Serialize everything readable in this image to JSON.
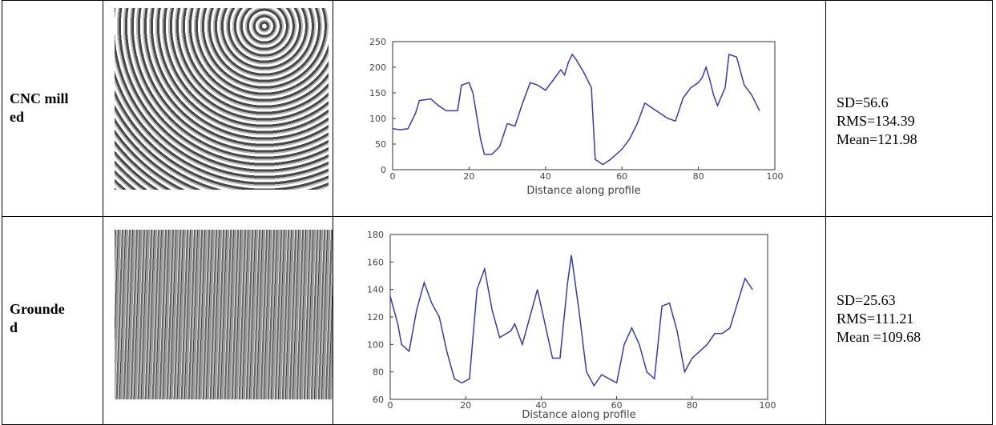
{
  "table": {
    "rows": [
      {
        "label": "CNC milled",
        "stats": [
          "SD=56.6",
          "RMS=134.39",
          "Mean=121.98"
        ]
      },
      {
        "label": "Grounded",
        "stats": [
          "SD=25.63",
          "RMS=111.21",
          "Mean =109.68"
        ]
      }
    ]
  },
  "chart_data": [
    {
      "type": "line",
      "xlabel": "Distance along profile",
      "color": "#3a3aa8",
      "x": [
        0,
        2,
        4,
        6,
        7,
        10,
        12,
        14,
        17,
        18,
        20,
        21,
        23,
        24,
        26,
        28,
        30,
        32,
        34,
        36,
        38,
        40,
        42,
        44,
        45,
        46,
        47,
        48,
        50,
        52,
        53,
        55,
        57,
        60,
        62,
        64,
        66,
        68,
        70,
        72,
        74,
        76,
        78,
        80,
        81,
        82,
        83,
        84,
        85,
        87,
        88,
        90,
        92,
        94,
        96
      ],
      "values": [
        80,
        78,
        80,
        110,
        135,
        138,
        125,
        115,
        115,
        165,
        170,
        150,
        60,
        30,
        30,
        45,
        90,
        85,
        130,
        170,
        165,
        155,
        175,
        195,
        185,
        210,
        225,
        215,
        190,
        160,
        20,
        10,
        20,
        40,
        60,
        90,
        130,
        120,
        110,
        100,
        95,
        140,
        160,
        170,
        180,
        200,
        175,
        145,
        125,
        160,
        225,
        220,
        165,
        145,
        115
      ],
      "xlim": [
        0,
        100
      ],
      "ylim": [
        0,
        250
      ],
      "xticks": [
        0,
        20,
        40,
        60,
        80,
        100
      ],
      "yticks": [
        0,
        50,
        100,
        150,
        200,
        250
      ]
    },
    {
      "type": "line",
      "xlabel": "Distance along profile",
      "color": "#3a3aa8",
      "x": [
        0,
        2,
        3,
        5,
        7,
        9,
        11,
        13,
        15,
        17,
        19,
        21,
        23,
        25,
        27,
        29,
        32,
        33,
        35,
        37,
        39,
        41,
        43,
        45,
        47,
        48,
        50,
        52,
        54,
        56,
        58,
        60,
        62,
        64,
        66,
        68,
        70,
        72,
        74,
        76,
        78,
        80,
        82,
        84,
        86,
        88,
        90,
        92,
        94,
        96
      ],
      "values": [
        135,
        115,
        100,
        95,
        125,
        145,
        130,
        120,
        95,
        75,
        72,
        75,
        140,
        155,
        125,
        105,
        110,
        115,
        100,
        120,
        140,
        115,
        90,
        90,
        145,
        165,
        125,
        80,
        70,
        78,
        75,
        72,
        100,
        112,
        100,
        80,
        75,
        128,
        130,
        110,
        80,
        90,
        95,
        100,
        108,
        108,
        112,
        130,
        148,
        140
      ],
      "xlim": [
        0,
        100
      ],
      "ylim": [
        60,
        180
      ],
      "xticks": [
        0,
        20,
        40,
        60,
        80,
        100
      ],
      "yticks": [
        60,
        80,
        100,
        120,
        140,
        160,
        180
      ]
    }
  ]
}
